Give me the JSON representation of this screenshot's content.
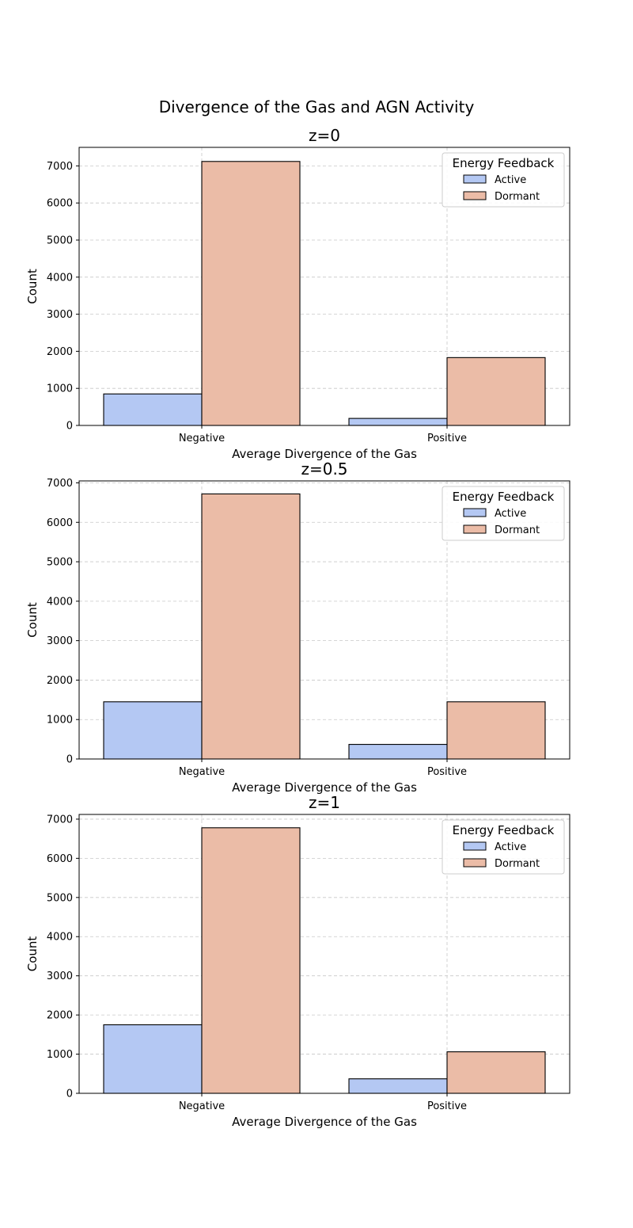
{
  "figure": {
    "title": "Divergence of the Gas and AGN Activity",
    "colors": {
      "Active": "#b4c8f3",
      "Dormant": "#ebbca7"
    }
  },
  "chart_data": [
    {
      "type": "bar",
      "title": "z=0",
      "xlabel": "Average Divergence of the Gas",
      "ylabel": "Count",
      "categories": [
        "Negative",
        "Positive"
      ],
      "series": [
        {
          "name": "Active",
          "values": [
            850,
            190
          ]
        },
        {
          "name": "Dormant",
          "values": [
            7120,
            1830
          ]
        }
      ],
      "ylim": [
        0,
        7500
      ],
      "yticks": [
        0,
        1000,
        2000,
        3000,
        4000,
        5000,
        6000,
        7000
      ],
      "legend": {
        "title": "Energy Feedback",
        "placement": "top-right"
      },
      "grid": true
    },
    {
      "type": "bar",
      "title": "z=0.5",
      "xlabel": "Average Divergence of the Gas",
      "ylabel": "Count",
      "categories": [
        "Negative",
        "Positive"
      ],
      "series": [
        {
          "name": "Active",
          "values": [
            1450,
            370
          ]
        },
        {
          "name": "Dormant",
          "values": [
            6720,
            1450
          ]
        }
      ],
      "ylim": [
        0,
        7050
      ],
      "yticks": [
        0,
        1000,
        2000,
        3000,
        4000,
        5000,
        6000,
        7000
      ],
      "legend": {
        "title": "Energy Feedback",
        "placement": "top-right"
      },
      "grid": true
    },
    {
      "type": "bar",
      "title": "z=1",
      "xlabel": "Average Divergence of the Gas",
      "ylabel": "Count",
      "categories": [
        "Negative",
        "Positive"
      ],
      "series": [
        {
          "name": "Active",
          "values": [
            1750,
            370
          ]
        },
        {
          "name": "Dormant",
          "values": [
            6780,
            1060
          ]
        }
      ],
      "ylim": [
        0,
        7120
      ],
      "yticks": [
        0,
        1000,
        2000,
        3000,
        4000,
        5000,
        6000,
        7000
      ],
      "legend": {
        "title": "Energy Feedback",
        "placement": "top-right"
      },
      "grid": true
    }
  ]
}
